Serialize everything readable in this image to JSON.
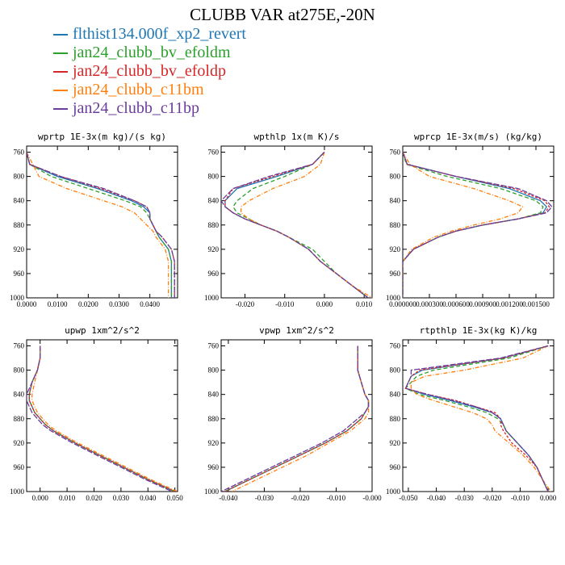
{
  "figure_title": "CLUBB VAR at275E,-20N",
  "legend": [
    {
      "label": "flthist134.000f_xp2_revert",
      "color": "#1f77b4"
    },
    {
      "label": "jan24_clubb_bv_efoldm",
      "color": "#2ca02c"
    },
    {
      "label": "jan24_clubb_bv_efoldp",
      "color": "#d62728"
    },
    {
      "label": "jan24_clubb_c11bm",
      "color": "#ff7f0e"
    },
    {
      "label": "jan24_clubb_c11bp",
      "color": "#6a3d9a"
    }
  ],
  "chart_data": [
    {
      "type": "line",
      "title": "wprtp  1E-3x(m kg)/(s kg)",
      "xlim": [
        0,
        0.049
      ],
      "ylim": [
        1000,
        750
      ],
      "xticks": [
        0,
        0.01,
        0.02,
        0.03,
        0.04
      ],
      "xticklabels": [
        "0.0000",
        "0.0100",
        "0.0200",
        "0.0300",
        "0.0400"
      ],
      "yticks": [
        760,
        800,
        840,
        880,
        920,
        960,
        1000
      ],
      "y": [
        760,
        780,
        800,
        820,
        840,
        850,
        860,
        870,
        880,
        890,
        900,
        920,
        940,
        960,
        980,
        1000
      ],
      "series": [
        {
          "name": "flthist134.000f_xp2_revert",
          "values": [
            0.0,
            0.001,
            0.01,
            0.023,
            0.034,
            0.038,
            0.04,
            0.04,
            0.041,
            0.042,
            0.043,
            0.046,
            0.047,
            0.047,
            0.047,
            0.047
          ]
        },
        {
          "name": "jan24_clubb_bv_efoldm",
          "values": [
            0.0,
            0.001,
            0.008,
            0.02,
            0.032,
            0.037,
            0.039,
            0.04,
            0.041,
            0.042,
            0.043,
            0.046,
            0.047,
            0.047,
            0.047,
            0.047
          ]
        },
        {
          "name": "jan24_clubb_bv_efoldp",
          "values": [
            0.0,
            0.001,
            0.011,
            0.024,
            0.035,
            0.039,
            0.04,
            0.04,
            0.041,
            0.042,
            0.044,
            0.047,
            0.048,
            0.048,
            0.048,
            0.048
          ]
        },
        {
          "name": "jan24_clubb_c11bm",
          "values": [
            0.0,
            0.002,
            0.004,
            0.013,
            0.025,
            0.031,
            0.035,
            0.037,
            0.039,
            0.041,
            0.042,
            0.045,
            0.046,
            0.046,
            0.046,
            0.046
          ]
        },
        {
          "name": "jan24_clubb_c11bp",
          "values": [
            0.0,
            0.001,
            0.011,
            0.025,
            0.035,
            0.039,
            0.04,
            0.04,
            0.041,
            0.042,
            0.044,
            0.047,
            0.048,
            0.048,
            0.048,
            0.048
          ]
        }
      ]
    },
    {
      "type": "line",
      "title": "wpthlp  1x(m K)/s",
      "xlim": [
        -0.026,
        0.012
      ],
      "ylim": [
        1000,
        750
      ],
      "xticks": [
        -0.02,
        -0.01,
        0,
        0.01
      ],
      "xticklabels": [
        "-0.020",
        "-0.010",
        "0.000",
        "0.010"
      ],
      "yticks": [
        760,
        800,
        840,
        880,
        920,
        960,
        1000
      ],
      "y": [
        760,
        780,
        800,
        820,
        840,
        850,
        860,
        870,
        880,
        890,
        900,
        920,
        940,
        960,
        980,
        1000
      ],
      "series": [
        {
          "name": "flthist134.000f_xp2_revert",
          "values": [
            0.0,
            -0.003,
            -0.012,
            -0.022,
            -0.025,
            -0.025,
            -0.023,
            -0.02,
            -0.016,
            -0.012,
            -0.009,
            -0.004,
            -0.001,
            0.003,
            0.007,
            0.011
          ]
        },
        {
          "name": "jan24_clubb_bv_efoldm",
          "values": [
            0.0,
            -0.003,
            -0.01,
            -0.018,
            -0.022,
            -0.023,
            -0.022,
            -0.019,
            -0.016,
            -0.012,
            -0.009,
            -0.003,
            0.0,
            0.003,
            0.007,
            0.011
          ]
        },
        {
          "name": "jan24_clubb_bv_efoldp",
          "values": [
            0.0,
            -0.003,
            -0.013,
            -0.023,
            -0.025,
            -0.025,
            -0.023,
            -0.02,
            -0.016,
            -0.012,
            -0.009,
            -0.004,
            -0.001,
            0.003,
            0.007,
            0.011
          ]
        },
        {
          "name": "jan24_clubb_c11bm",
          "values": [
            0.0,
            -0.001,
            -0.005,
            -0.013,
            -0.019,
            -0.021,
            -0.021,
            -0.019,
            -0.016,
            -0.012,
            -0.009,
            -0.004,
            -0.001,
            0.003,
            0.007,
            0.012
          ]
        },
        {
          "name": "jan24_clubb_c11bp",
          "values": [
            0.0,
            -0.003,
            -0.014,
            -0.023,
            -0.026,
            -0.025,
            -0.023,
            -0.02,
            -0.016,
            -0.012,
            -0.009,
            -0.004,
            -0.001,
            0.003,
            0.007,
            0.011
          ]
        }
      ]
    },
    {
      "type": "line",
      "title": "wprcp  1E-3x(m/s) (kg/kg)",
      "xlim": [
        0,
        0.0017
      ],
      "ylim": [
        1000,
        750
      ],
      "xticks": [
        0,
        0.0003,
        0.0006,
        0.0009,
        0.0012,
        0.0015
      ],
      "xticklabels": [
        "0.000000",
        "0.000300",
        "0.000600",
        "0.000900",
        "0.001200",
        "0.001500"
      ],
      "yticks": [
        760,
        800,
        840,
        880,
        920,
        960,
        1000
      ],
      "y": [
        760,
        780,
        800,
        820,
        840,
        850,
        860,
        870,
        880,
        890,
        900,
        920,
        940,
        960,
        980,
        1000
      ],
      "series": [
        {
          "name": "flthist134.000f_xp2_revert",
          "values": [
            0.0,
            5e-05,
            0.0006,
            0.0012,
            0.00155,
            0.00162,
            0.00158,
            0.0013,
            0.0009,
            0.0006,
            0.0004,
            0.00012,
            0.0,
            0.0,
            0.0,
            0.0
          ]
        },
        {
          "name": "jan24_clubb_bv_efoldm",
          "values": [
            0.0,
            4e-05,
            0.0005,
            0.0011,
            0.0015,
            0.00158,
            0.00155,
            0.0013,
            0.0009,
            0.0006,
            0.0004,
            0.00012,
            0.0,
            0.0,
            0.0,
            0.0
          ]
        },
        {
          "name": "jan24_clubb_bv_efoldp",
          "values": [
            0.0,
            5e-05,
            0.0006,
            0.00125,
            0.0016,
            0.00165,
            0.0016,
            0.0013,
            0.0009,
            0.0006,
            0.0004,
            0.00012,
            0.0,
            0.0,
            0.0,
            0.0
          ]
        },
        {
          "name": "jan24_clubb_c11bm",
          "values": [
            0.0,
            8e-05,
            0.0003,
            0.0008,
            0.0012,
            0.00135,
            0.0013,
            0.0011,
            0.0008,
            0.00055,
            0.00035,
            0.0001,
            0.0,
            0.0,
            0.0,
            0.0
          ]
        },
        {
          "name": "jan24_clubb_c11bp",
          "values": [
            0.0,
            5e-05,
            0.0006,
            0.0013,
            0.00162,
            0.00168,
            0.00162,
            0.0013,
            0.0009,
            0.0006,
            0.0004,
            0.00012,
            0.0,
            0.0,
            0.0,
            0.0
          ]
        }
      ]
    },
    {
      "type": "line",
      "title": "upwp  1xm^2/s^2",
      "xlim": [
        -0.005,
        0.051
      ],
      "ylim": [
        1000,
        750
      ],
      "xticks": [
        0,
        0.01,
        0.02,
        0.03,
        0.04,
        0.05
      ],
      "xticklabels": [
        "0.000",
        "0.010",
        "0.020",
        "0.030",
        "0.040",
        "0.050"
      ],
      "yticks": [
        760,
        800,
        840,
        880,
        920,
        960,
        1000
      ],
      "y": [
        760,
        780,
        800,
        820,
        840,
        850,
        860,
        870,
        880,
        890,
        900,
        920,
        940,
        960,
        980,
        1000
      ],
      "series": [
        {
          "name": "flthist134.000f_xp2_revert",
          "values": [
            0.0,
            0.0,
            -0.001,
            -0.003,
            -0.004,
            -0.004,
            -0.003,
            -0.002,
            0.0,
            0.002,
            0.005,
            0.013,
            0.022,
            0.031,
            0.04,
            0.05
          ]
        },
        {
          "name": "jan24_clubb_bv_efoldm",
          "values": [
            0.0,
            0.0,
            -0.001,
            -0.003,
            -0.004,
            -0.004,
            -0.003,
            -0.002,
            0.0,
            0.002,
            0.005,
            0.013,
            0.022,
            0.031,
            0.04,
            0.05
          ]
        },
        {
          "name": "jan24_clubb_bv_efoldp",
          "values": [
            0.0,
            0.0,
            -0.001,
            -0.003,
            -0.004,
            -0.004,
            -0.003,
            -0.002,
            0.0,
            0.002,
            0.005,
            0.013,
            0.022,
            0.031,
            0.04,
            0.05
          ]
        },
        {
          "name": "jan24_clubb_c11bm",
          "values": [
            0.0,
            0.0,
            -0.001,
            -0.002,
            -0.003,
            -0.003,
            -0.002,
            -0.001,
            0.001,
            0.003,
            0.006,
            0.014,
            0.023,
            0.032,
            0.041,
            0.051
          ]
        },
        {
          "name": "jan24_clubb_c11bp",
          "values": [
            0.0,
            0.0,
            -0.001,
            -0.003,
            -0.005,
            -0.005,
            -0.004,
            -0.003,
            -0.001,
            0.001,
            0.004,
            0.012,
            0.021,
            0.03,
            0.039,
            0.049
          ]
        }
      ]
    },
    {
      "type": "line",
      "title": "vpwp  1xm^2/s^2",
      "xlim": [
        -0.042,
        0.0
      ],
      "ylim": [
        1000,
        750
      ],
      "xticks": [
        -0.04,
        -0.03,
        -0.02,
        -0.01,
        0
      ],
      "xticklabels": [
        "-0.040",
        "-0.030",
        "-0.020",
        "-0.010",
        "-0.000"
      ],
      "yticks": [
        760,
        800,
        840,
        880,
        920,
        960,
        1000
      ],
      "y": [
        760,
        780,
        800,
        820,
        840,
        850,
        860,
        870,
        880,
        890,
        900,
        920,
        940,
        960,
        980,
        1000
      ],
      "series": [
        {
          "name": "flthist134.000f_xp2_revert",
          "values": [
            -0.004,
            -0.004,
            -0.004,
            -0.003,
            -0.002,
            -0.001,
            -0.001,
            -0.002,
            -0.003,
            -0.005,
            -0.007,
            -0.013,
            -0.02,
            -0.027,
            -0.034,
            -0.041
          ]
        },
        {
          "name": "jan24_clubb_bv_efoldm",
          "values": [
            -0.004,
            -0.004,
            -0.004,
            -0.003,
            -0.002,
            -0.001,
            -0.001,
            -0.002,
            -0.003,
            -0.005,
            -0.007,
            -0.013,
            -0.02,
            -0.027,
            -0.034,
            -0.041
          ]
        },
        {
          "name": "jan24_clubb_bv_efoldp",
          "values": [
            -0.004,
            -0.004,
            -0.004,
            -0.003,
            -0.002,
            -0.001,
            -0.001,
            -0.002,
            -0.003,
            -0.005,
            -0.007,
            -0.013,
            -0.02,
            -0.027,
            -0.034,
            -0.041
          ]
        },
        {
          "name": "jan24_clubb_c11bm",
          "values": [
            -0.004,
            -0.004,
            -0.004,
            -0.003,
            -0.002,
            -0.001,
            -0.001,
            -0.001,
            -0.002,
            -0.004,
            -0.006,
            -0.012,
            -0.018,
            -0.025,
            -0.032,
            -0.039
          ]
        },
        {
          "name": "jan24_clubb_c11bp",
          "values": [
            -0.004,
            -0.004,
            -0.004,
            -0.003,
            -0.002,
            -0.001,
            -0.001,
            -0.002,
            -0.004,
            -0.006,
            -0.008,
            -0.014,
            -0.021,
            -0.028,
            -0.035,
            -0.042
          ]
        }
      ]
    },
    {
      "type": "line",
      "title": "rtpthlp  1E-3x(kg K)/kg",
      "xlim": [
        -0.052,
        0.002
      ],
      "ylim": [
        1000,
        750
      ],
      "xticks": [
        -0.05,
        -0.04,
        -0.03,
        -0.02,
        -0.01,
        0
      ],
      "xticklabels": [
        "-0.050",
        "-0.040",
        "-0.030",
        "-0.020",
        "-0.010",
        "0.000"
      ],
      "yticks": [
        760,
        800,
        840,
        880,
        920,
        960,
        1000
      ],
      "y": [
        760,
        780,
        800,
        810,
        820,
        830,
        840,
        850,
        860,
        870,
        880,
        890,
        900,
        920,
        940,
        960,
        980,
        1000
      ],
      "series": [
        {
          "name": "flthist134.000f_xp2_revert",
          "values": [
            0.0,
            -0.016,
            -0.045,
            -0.049,
            -0.05,
            -0.051,
            -0.044,
            -0.035,
            -0.027,
            -0.02,
            -0.017,
            -0.016,
            -0.015,
            -0.011,
            -0.007,
            -0.004,
            -0.002,
            0.0
          ]
        },
        {
          "name": "jan24_clubb_bv_efoldm",
          "values": [
            0.0,
            -0.014,
            -0.041,
            -0.047,
            -0.049,
            -0.051,
            -0.046,
            -0.037,
            -0.029,
            -0.022,
            -0.018,
            -0.016,
            -0.015,
            -0.011,
            -0.007,
            -0.004,
            -0.002,
            0.0
          ]
        },
        {
          "name": "jan24_clubb_bv_efoldp",
          "values": [
            0.0,
            -0.016,
            -0.046,
            -0.049,
            -0.05,
            -0.051,
            -0.043,
            -0.033,
            -0.026,
            -0.019,
            -0.017,
            -0.017,
            -0.016,
            -0.013,
            -0.008,
            -0.004,
            -0.002,
            0.0
          ]
        },
        {
          "name": "jan24_clubb_c11bm",
          "values": [
            0.0,
            -0.009,
            -0.03,
            -0.044,
            -0.049,
            -0.049,
            -0.047,
            -0.041,
            -0.034,
            -0.027,
            -0.022,
            -0.02,
            -0.019,
            -0.014,
            -0.009,
            -0.005,
            -0.002,
            0.001
          ]
        },
        {
          "name": "jan24_clubb_c11bp",
          "values": [
            0.0,
            -0.017,
            -0.049,
            -0.049,
            -0.05,
            -0.051,
            -0.043,
            -0.034,
            -0.026,
            -0.02,
            -0.017,
            -0.016,
            -0.015,
            -0.011,
            -0.007,
            -0.004,
            -0.002,
            0.0
          ]
        }
      ]
    }
  ]
}
